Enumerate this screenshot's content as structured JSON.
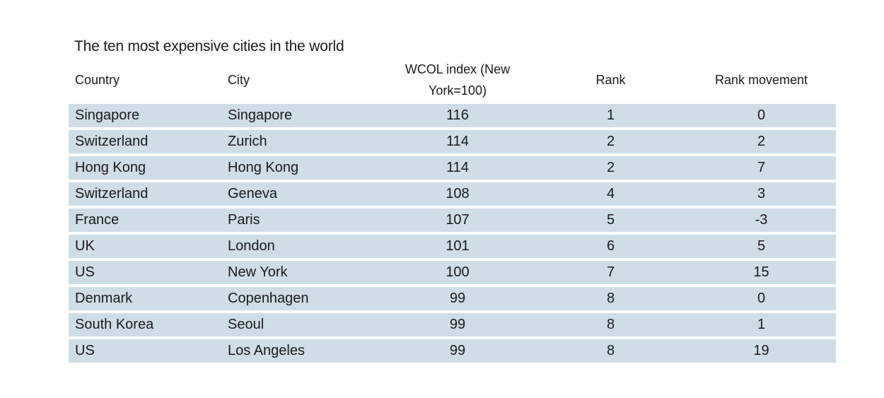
{
  "title": "The ten most expensive cities in the world",
  "headers": {
    "country": "Country",
    "city": "City",
    "wcol": "WCOL index (New York=100)",
    "rank": "Rank",
    "movement": "Rank movement"
  },
  "rows": [
    {
      "country": "Singapore",
      "city": "Singapore",
      "wcol": "116",
      "rank": "1",
      "movement": "0"
    },
    {
      "country": "Switzerland",
      "city": "Zurich",
      "wcol": "114",
      "rank": "2",
      "movement": "2"
    },
    {
      "country": "Hong Kong",
      "city": "Hong Kong",
      "wcol": "114",
      "rank": "2",
      "movement": "7"
    },
    {
      "country": "Switzerland",
      "city": "Geneva",
      "wcol": "108",
      "rank": "4",
      "movement": "3"
    },
    {
      "country": "France",
      "city": "Paris",
      "wcol": "107",
      "rank": "5",
      "movement": "-3"
    },
    {
      "country": "UK",
      "city": "London",
      "wcol": "101",
      "rank": "6",
      "movement": "5"
    },
    {
      "country": "US",
      "city": "New York",
      "wcol": "100",
      "rank": "7",
      "movement": "15"
    },
    {
      "country": "Denmark",
      "city": "Copenhagen",
      "wcol": "99",
      "rank": "8",
      "movement": "0"
    },
    {
      "country": "South Korea",
      "city": "Seoul",
      "wcol": "99",
      "rank": "8",
      "movement": "1"
    },
    {
      "country": "US",
      "city": "Los Angeles",
      "wcol": "99",
      "rank": "8",
      "movement": "19"
    }
  ],
  "colors": {
    "row_background": "#cfdde7",
    "text": "#1a1a1a"
  }
}
